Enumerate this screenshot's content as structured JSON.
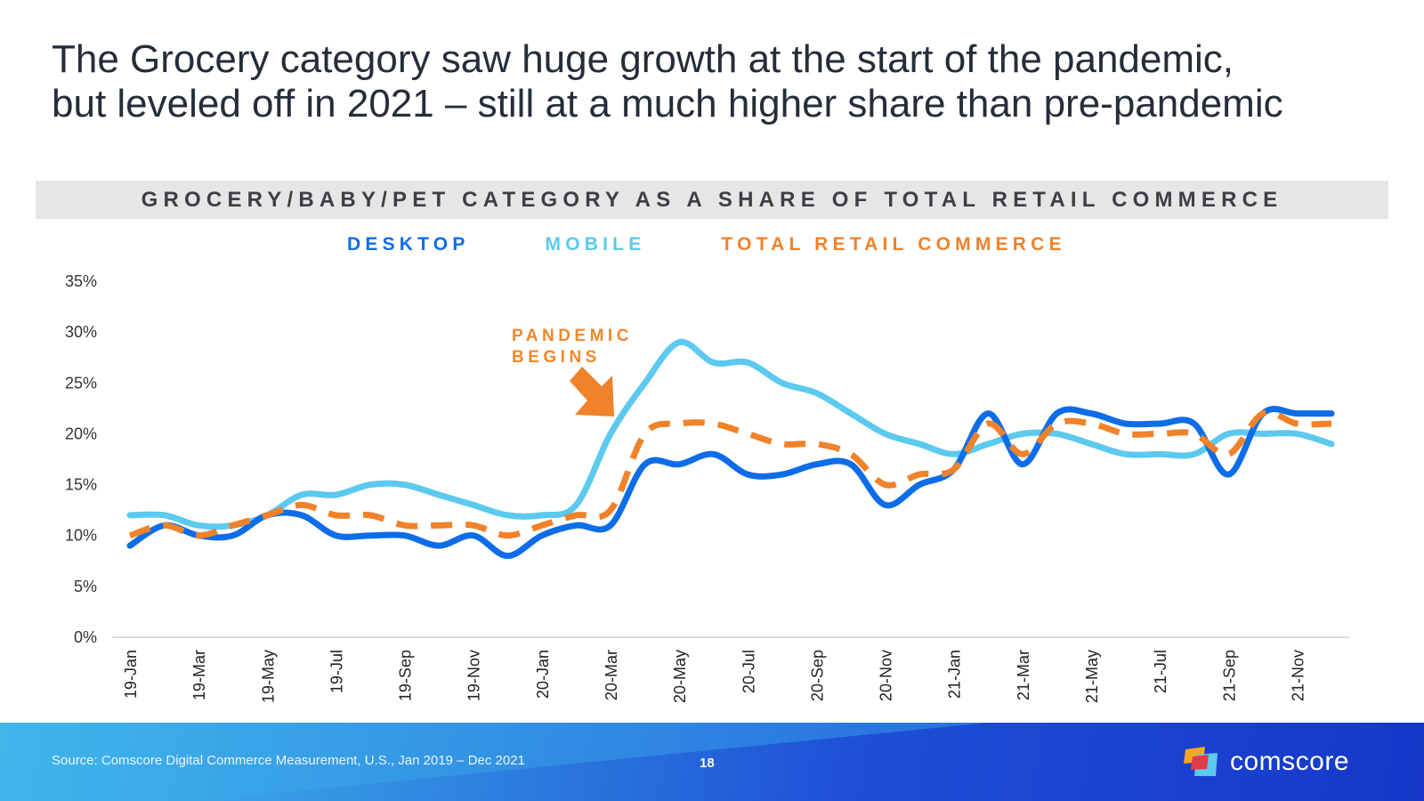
{
  "slide": {
    "title_line1": "The Grocery category saw huge growth at the start of the pandemic,",
    "title_line2": "but leveled off in 2021 – still at a much higher share than pre-pandemic",
    "page_number": "18",
    "source": "Source: Comscore Digital Commerce Measurement, U.S., Jan 2019 – Dec 2021",
    "brand": "comscore"
  },
  "colors": {
    "desktop": "#0d6de8",
    "mobile": "#5cc9ee",
    "total": "#f0822a",
    "annotation": "#f0882a"
  },
  "chart_data": {
    "type": "line",
    "title": "GROCERY/BABY/PET  CATEGORY AS A SHARE OF TOTAL RETAIL COMMERCE",
    "xlabel": "",
    "ylabel": "",
    "ylim": [
      0,
      35
    ],
    "yticks": [
      0,
      5,
      10,
      15,
      20,
      25,
      30,
      35
    ],
    "ytick_labels": [
      "0%",
      "5%",
      "10%",
      "15%",
      "20%",
      "25%",
      "30%",
      "35%"
    ],
    "grid": false,
    "legend": "top",
    "categories": [
      "19-Jan",
      "19-Feb",
      "19-Mar",
      "19-Apr",
      "19-May",
      "19-Jun",
      "19-Jul",
      "19-Aug",
      "19-Sep",
      "19-Oct",
      "19-Nov",
      "19-Dec",
      "20-Jan",
      "20-Feb",
      "20-Mar",
      "20-Apr",
      "20-May",
      "20-Jun",
      "20-Jul",
      "20-Aug",
      "20-Sep",
      "20-Oct",
      "20-Nov",
      "20-Dec",
      "21-Jan",
      "21-Feb",
      "21-Mar",
      "21-Apr",
      "21-May",
      "21-Jun",
      "21-Jul",
      "21-Aug",
      "21-Sep",
      "21-Oct",
      "21-Nov",
      "21-Dec"
    ],
    "tick_labels": [
      "19-Jan",
      "19-Mar",
      "19-May",
      "19-Jul",
      "19-Sep",
      "19-Nov",
      "20-Jan",
      "20-Mar",
      "20-May",
      "20-Jul",
      "20-Sep",
      "20-Nov",
      "21-Jan",
      "21-Mar",
      "21-May",
      "21-Jul",
      "21-Sep",
      "21-Nov"
    ],
    "series": [
      {
        "name": "DESKTOP",
        "style": "solid",
        "values": [
          9,
          11,
          10,
          10,
          12,
          12,
          10,
          10,
          10,
          9,
          10,
          8,
          10,
          11,
          11,
          17,
          17,
          18,
          16,
          16,
          17,
          17,
          13,
          15,
          16.5,
          22,
          17,
          22,
          22,
          21,
          21,
          21,
          16,
          22,
          22,
          22
        ]
      },
      {
        "name": "MOBILE",
        "style": "solid",
        "values": [
          12,
          12,
          11,
          11,
          12,
          14,
          14,
          15,
          15,
          14,
          13,
          12,
          12,
          13,
          20,
          25,
          29,
          27,
          27,
          25,
          24,
          22,
          20,
          19,
          18,
          19,
          20,
          20,
          19,
          18,
          18,
          18,
          20,
          20,
          20,
          19
        ]
      },
      {
        "name": "TOTAL RETAIL COMMERCE",
        "style": "dashed",
        "values": [
          10,
          11,
          10,
          11,
          12,
          13,
          12,
          12,
          11,
          11,
          11,
          10,
          11,
          12,
          12.5,
          20,
          21,
          21,
          20,
          19,
          19,
          18,
          15,
          16,
          16.5,
          21,
          18,
          21,
          21,
          20,
          20,
          20,
          18,
          22,
          21,
          21
        ]
      }
    ],
    "annotations": [
      {
        "text_line1": "PANDEMIC",
        "text_line2": "BEGINS",
        "category": "20-Mar"
      }
    ]
  }
}
